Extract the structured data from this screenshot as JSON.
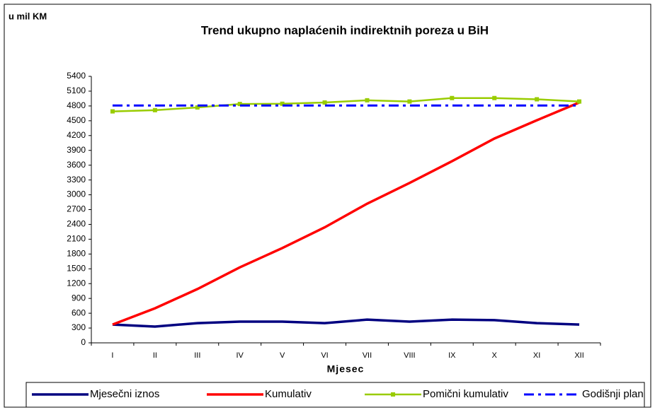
{
  "chart_data": {
    "type": "line",
    "title": "Trend ukupno naplaćenih indirektnih poreza u BiH",
    "y_axis_label": "u mil KM",
    "x_axis_label": "Mjesec",
    "categories": [
      "I",
      "II",
      "III",
      "IV",
      "V",
      "VI",
      "VII",
      "VIII",
      "IX",
      "X",
      "XI",
      "XII"
    ],
    "series": [
      {
        "name": "Mjesečni iznos",
        "color": "#000080",
        "style": "solid",
        "values": [
          370,
          330,
          400,
          430,
          430,
          400,
          470,
          430,
          470,
          460,
          400,
          370
        ]
      },
      {
        "name": "Kumulativ",
        "color": "#ff0000",
        "style": "solid",
        "values": [
          370,
          700,
          1090,
          1530,
          1920,
          2340,
          2820,
          3240,
          3680,
          4140,
          4510,
          4870
        ]
      },
      {
        "name": "Pomični kumulativ",
        "color": "#99cc00",
        "style": "marker",
        "values": [
          4690,
          4715,
          4770,
          4840,
          4845,
          4870,
          4915,
          4890,
          4960,
          4960,
          4935,
          4890
        ]
      },
      {
        "name": "Godišnji plan",
        "color": "#0000ff",
        "style": "dashdot",
        "values": [
          4810,
          4810,
          4810,
          4810,
          4810,
          4810,
          4810,
          4810,
          4810,
          4810,
          4810,
          4810
        ]
      }
    ],
    "ylim": [
      0,
      5400
    ],
    "yticks": [
      0,
      300,
      600,
      900,
      1200,
      1500,
      1800,
      2100,
      2400,
      2700,
      3000,
      3300,
      3600,
      3900,
      4200,
      4500,
      4800,
      5100,
      5400
    ],
    "legend": "bottom"
  }
}
